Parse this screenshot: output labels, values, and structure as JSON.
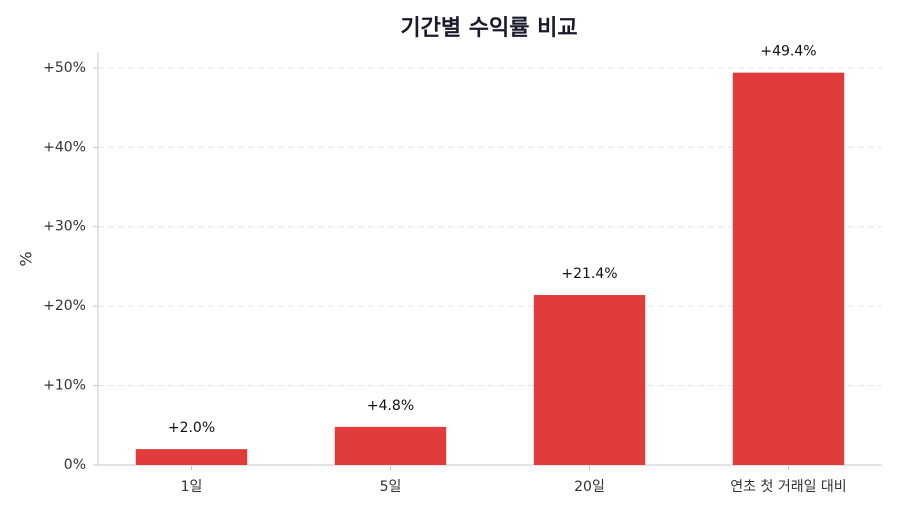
{
  "chart_data": {
    "type": "bar",
    "title": "기간별 수익률 비교",
    "y_label": "%",
    "categories": [
      "1일",
      "5일",
      "20일",
      "연초 첫 거래일 대비"
    ],
    "values": [
      2.0,
      4.8,
      21.4,
      49.4
    ],
    "value_labels": [
      "+2.0%",
      "+4.8%",
      "+21.4%",
      "+49.4%"
    ],
    "color": "#e03c3c",
    "ylim": [
      0,
      52
    ],
    "yticks": [
      {
        "value": 0,
        "label": "0%"
      },
      {
        "value": 10,
        "label": "+10%"
      },
      {
        "value": 20,
        "label": "+20%"
      },
      {
        "value": 30,
        "label": "+30%"
      },
      {
        "value": 40,
        "label": "+40%"
      },
      {
        "value": 50,
        "label": "+50%"
      }
    ],
    "grid": true
  }
}
